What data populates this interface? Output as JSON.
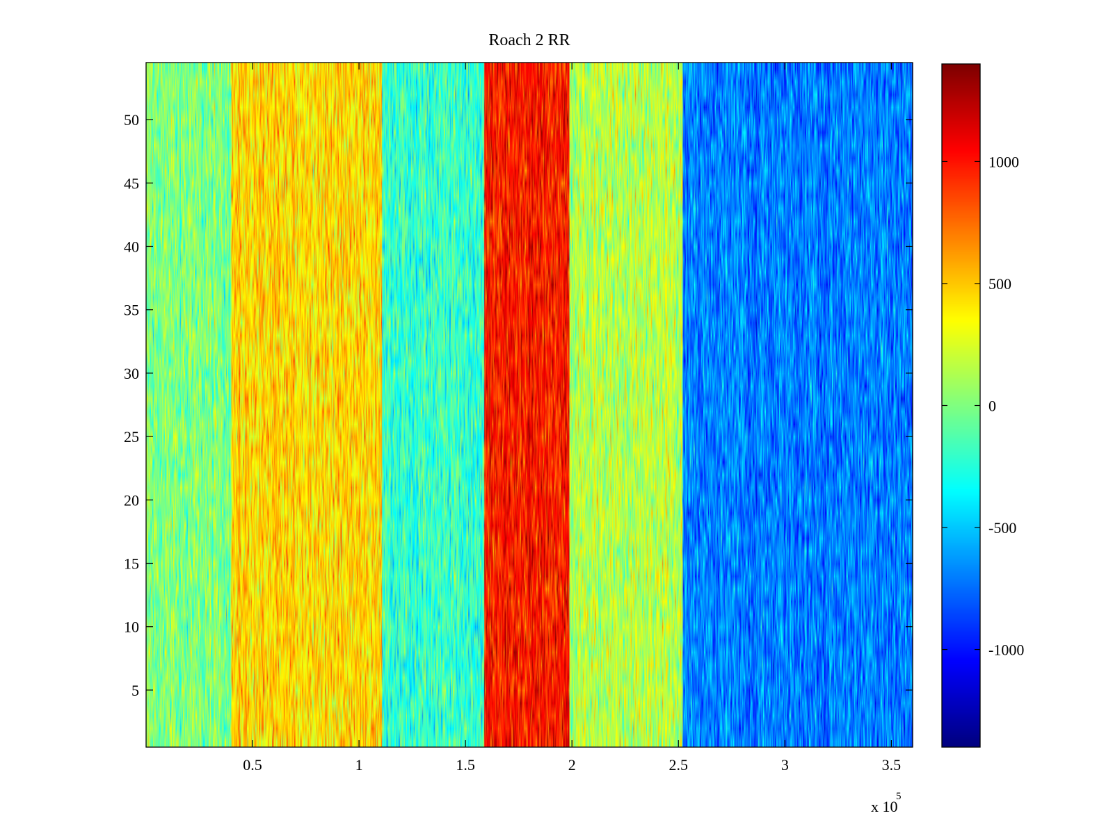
{
  "chart_data": {
    "type": "heatmap",
    "title": "Roach 2 RR",
    "xlabel": "",
    "ylabel": "",
    "x_multiplier_label": "x 10",
    "x_multiplier_exponent": "5",
    "xlim": [
      0,
      360000
    ],
    "ylim": [
      0.5,
      54.5
    ],
    "rows": 54,
    "x_ticks": [
      {
        "value": 50000,
        "label": "0.5"
      },
      {
        "value": 100000,
        "label": "1"
      },
      {
        "value": 150000,
        "label": "1.5"
      },
      {
        "value": 200000,
        "label": "2"
      },
      {
        "value": 250000,
        "label": "2.5"
      },
      {
        "value": 300000,
        "label": "3"
      },
      {
        "value": 350000,
        "label": "3.5"
      }
    ],
    "y_ticks": [
      {
        "value": 5,
        "label": "5"
      },
      {
        "value": 10,
        "label": "10"
      },
      {
        "value": 15,
        "label": "15"
      },
      {
        "value": 20,
        "label": "20"
      },
      {
        "value": 25,
        "label": "25"
      },
      {
        "value": 30,
        "label": "30"
      },
      {
        "value": 35,
        "label": "35"
      },
      {
        "value": 40,
        "label": "40"
      },
      {
        "value": 45,
        "label": "45"
      },
      {
        "value": 50,
        "label": "50"
      }
    ],
    "colorbar": {
      "colormap": "jet",
      "clim": [
        -1400,
        1400
      ],
      "ticks": [
        {
          "value": 1000,
          "label": "1000"
        },
        {
          "value": 500,
          "label": "500"
        },
        {
          "value": 0,
          "label": "0"
        },
        {
          "value": -500,
          "label": "-500"
        },
        {
          "value": -1000,
          "label": "-1000"
        }
      ]
    },
    "bands": [
      {
        "x_start": 0,
        "x_end": 40000,
        "mean_value": 0
      },
      {
        "x_start": 40000,
        "x_end": 111000,
        "mean_value": 450
      },
      {
        "x_start": 111000,
        "x_end": 159000,
        "mean_value": -200
      },
      {
        "x_start": 159000,
        "x_end": 199000,
        "mean_value": 1000
      },
      {
        "x_start": 199000,
        "x_end": 252000,
        "mean_value": 150
      },
      {
        "x_start": 252000,
        "x_end": 360000,
        "mean_value": -700
      }
    ],
    "grid": false,
    "legend": "none"
  }
}
